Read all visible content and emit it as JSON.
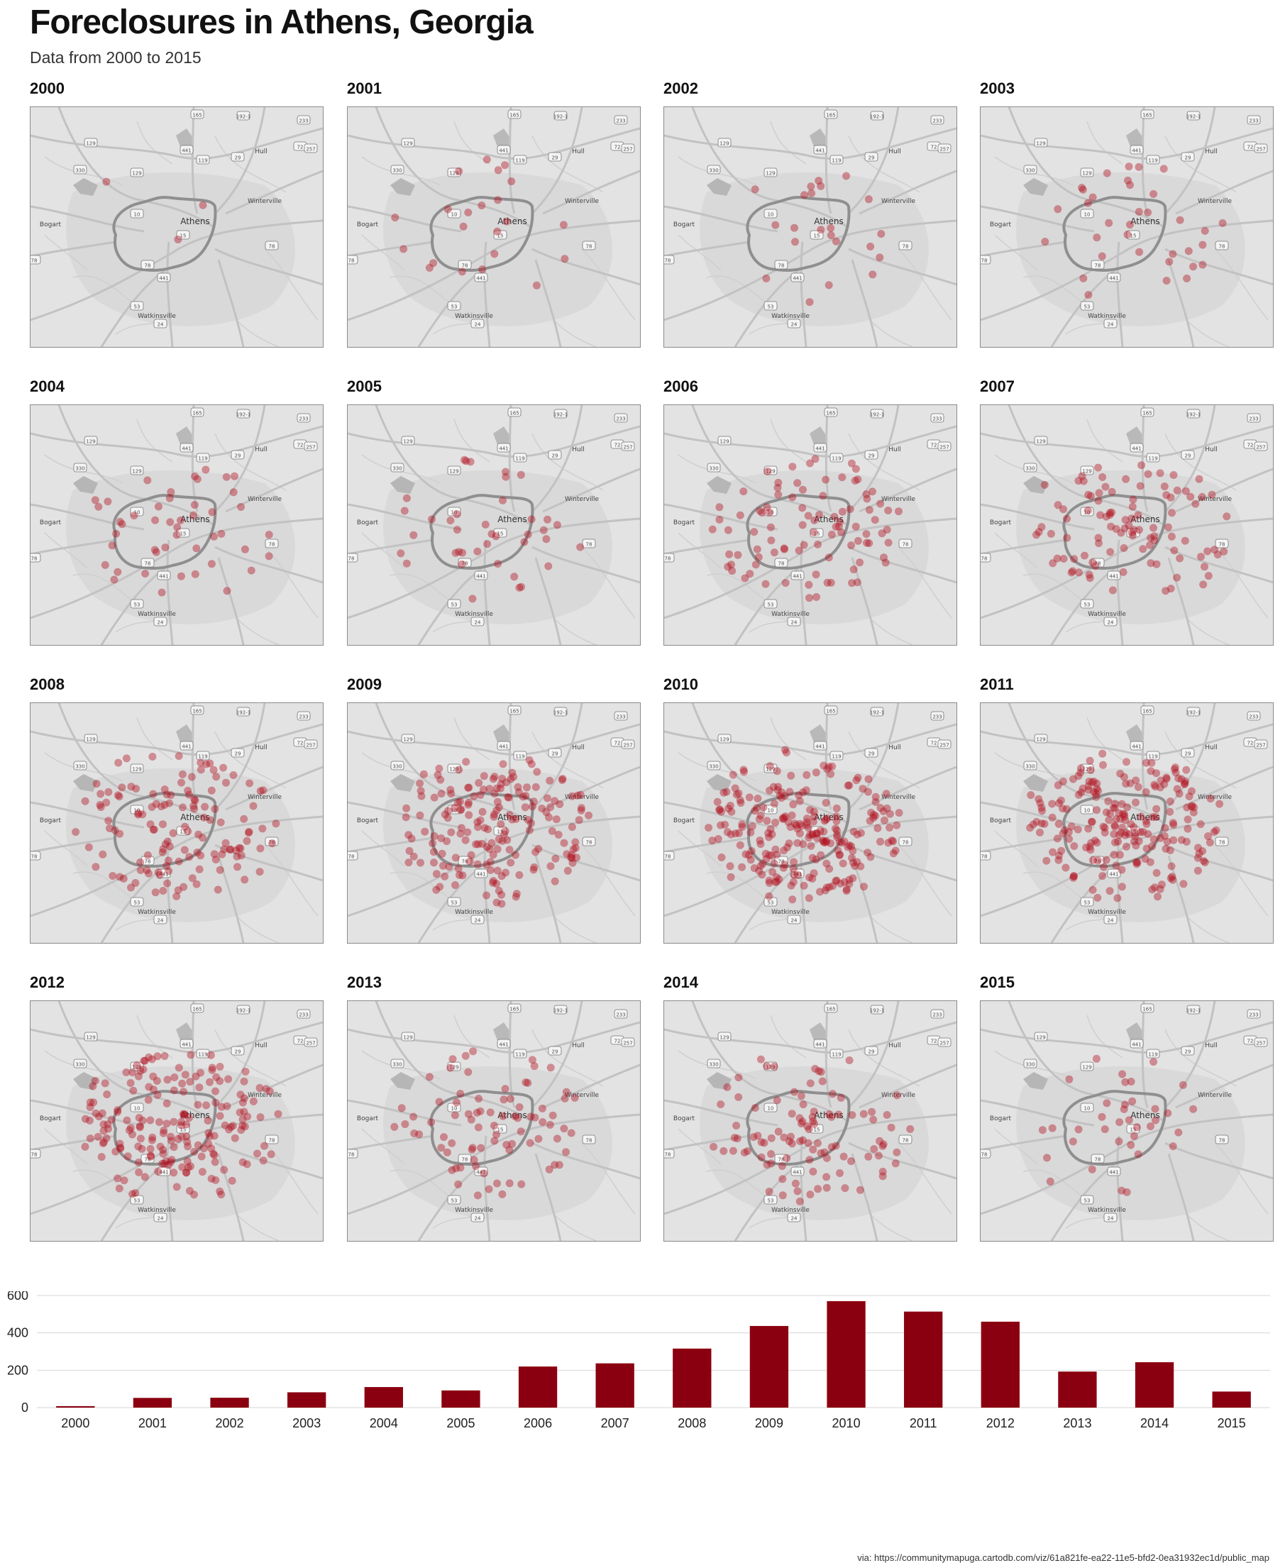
{
  "header": {
    "title": "Foreclosures in Athens, Georgia",
    "subtitle": "Data from 2000 to 2015"
  },
  "panels": [
    {
      "year": "2000"
    },
    {
      "year": "2001"
    },
    {
      "year": "2002"
    },
    {
      "year": "2003"
    },
    {
      "year": "2004"
    },
    {
      "year": "2005"
    },
    {
      "year": "2006"
    },
    {
      "year": "2007"
    },
    {
      "year": "2008"
    },
    {
      "year": "2009"
    },
    {
      "year": "2010"
    },
    {
      "year": "2011"
    },
    {
      "year": "2012"
    },
    {
      "year": "2013"
    },
    {
      "year": "2014"
    },
    {
      "year": "2015"
    }
  ],
  "map_labels": {
    "athens": "Athens",
    "hull": "Hull",
    "winterville": "Winterville",
    "bogart": "Bogart",
    "watkinsville": "Watkinsville",
    "shields": [
      "165",
      "192-1",
      "233",
      "129",
      "441",
      "72",
      "257",
      "330",
      "119",
      "29",
      "129",
      "10",
      "15",
      "78",
      "78",
      "441",
      "53",
      "24",
      "78"
    ]
  },
  "citation": "via: https://communitymapuga.cartodb.com/viz/61a821fe-ea22-11e5-bfd2-0ea31932ec1d/public_map",
  "colors": {
    "point": "#b0101e",
    "bar": "#8b0010",
    "map_bg": "#e3e3e3",
    "road": "#c4c4c4",
    "ring": "#8f8f8f"
  },
  "chart_data": {
    "type": "bar",
    "categories": [
      "2000",
      "2001",
      "2002",
      "2003",
      "2004",
      "2005",
      "2006",
      "2007",
      "2008",
      "2009",
      "2010",
      "2011",
      "2012",
      "2013",
      "2014",
      "2015"
    ],
    "values": [
      8,
      52,
      53,
      82,
      110,
      92,
      220,
      237,
      316,
      437,
      570,
      514,
      460,
      193,
      243,
      86
    ],
    "yticks": [
      "0",
      "200",
      "400",
      "600"
    ],
    "ylim": [
      0,
      600
    ],
    "grid": true
  }
}
